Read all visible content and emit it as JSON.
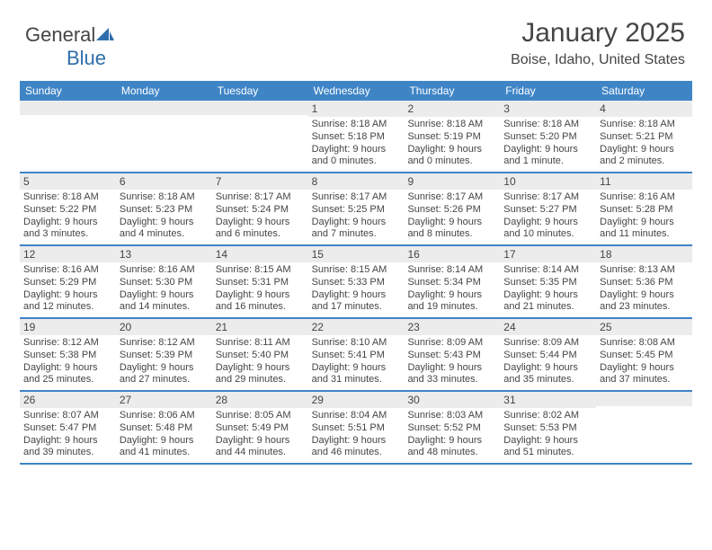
{
  "brand": {
    "part1": "General",
    "part2": "Blue"
  },
  "colors": {
    "header_bg": "#3f85c6",
    "header_text": "#ffffff",
    "daynum_bg": "#ececec",
    "text": "#454545",
    "divider": "#3f85c6",
    "logo_blue": "#2f6eab",
    "background": "#ffffff"
  },
  "fonts": {
    "base_family": "Arial, Helvetica, sans-serif",
    "title_size_pt": 22,
    "location_size_pt": 12,
    "day_body_size_pt": 8
  },
  "title": "January 2025",
  "location": "Boise, Idaho, United States",
  "day_names": [
    "Sunday",
    "Monday",
    "Tuesday",
    "Wednesday",
    "Thursday",
    "Friday",
    "Saturday"
  ],
  "weeks": [
    [
      {
        "n": "",
        "lines": []
      },
      {
        "n": "",
        "lines": []
      },
      {
        "n": "",
        "lines": []
      },
      {
        "n": "1",
        "lines": [
          "Sunrise: 8:18 AM",
          "Sunset: 5:18 PM",
          "Daylight: 9 hours",
          "and 0 minutes."
        ]
      },
      {
        "n": "2",
        "lines": [
          "Sunrise: 8:18 AM",
          "Sunset: 5:19 PM",
          "Daylight: 9 hours",
          "and 0 minutes."
        ]
      },
      {
        "n": "3",
        "lines": [
          "Sunrise: 8:18 AM",
          "Sunset: 5:20 PM",
          "Daylight: 9 hours",
          "and 1 minute."
        ]
      },
      {
        "n": "4",
        "lines": [
          "Sunrise: 8:18 AM",
          "Sunset: 5:21 PM",
          "Daylight: 9 hours",
          "and 2 minutes."
        ]
      }
    ],
    [
      {
        "n": "5",
        "lines": [
          "Sunrise: 8:18 AM",
          "Sunset: 5:22 PM",
          "Daylight: 9 hours",
          "and 3 minutes."
        ]
      },
      {
        "n": "6",
        "lines": [
          "Sunrise: 8:18 AM",
          "Sunset: 5:23 PM",
          "Daylight: 9 hours",
          "and 4 minutes."
        ]
      },
      {
        "n": "7",
        "lines": [
          "Sunrise: 8:17 AM",
          "Sunset: 5:24 PM",
          "Daylight: 9 hours",
          "and 6 minutes."
        ]
      },
      {
        "n": "8",
        "lines": [
          "Sunrise: 8:17 AM",
          "Sunset: 5:25 PM",
          "Daylight: 9 hours",
          "and 7 minutes."
        ]
      },
      {
        "n": "9",
        "lines": [
          "Sunrise: 8:17 AM",
          "Sunset: 5:26 PM",
          "Daylight: 9 hours",
          "and 8 minutes."
        ]
      },
      {
        "n": "10",
        "lines": [
          "Sunrise: 8:17 AM",
          "Sunset: 5:27 PM",
          "Daylight: 9 hours",
          "and 10 minutes."
        ]
      },
      {
        "n": "11",
        "lines": [
          "Sunrise: 8:16 AM",
          "Sunset: 5:28 PM",
          "Daylight: 9 hours",
          "and 11 minutes."
        ]
      }
    ],
    [
      {
        "n": "12",
        "lines": [
          "Sunrise: 8:16 AM",
          "Sunset: 5:29 PM",
          "Daylight: 9 hours",
          "and 12 minutes."
        ]
      },
      {
        "n": "13",
        "lines": [
          "Sunrise: 8:16 AM",
          "Sunset: 5:30 PM",
          "Daylight: 9 hours",
          "and 14 minutes."
        ]
      },
      {
        "n": "14",
        "lines": [
          "Sunrise: 8:15 AM",
          "Sunset: 5:31 PM",
          "Daylight: 9 hours",
          "and 16 minutes."
        ]
      },
      {
        "n": "15",
        "lines": [
          "Sunrise: 8:15 AM",
          "Sunset: 5:33 PM",
          "Daylight: 9 hours",
          "and 17 minutes."
        ]
      },
      {
        "n": "16",
        "lines": [
          "Sunrise: 8:14 AM",
          "Sunset: 5:34 PM",
          "Daylight: 9 hours",
          "and 19 minutes."
        ]
      },
      {
        "n": "17",
        "lines": [
          "Sunrise: 8:14 AM",
          "Sunset: 5:35 PM",
          "Daylight: 9 hours",
          "and 21 minutes."
        ]
      },
      {
        "n": "18",
        "lines": [
          "Sunrise: 8:13 AM",
          "Sunset: 5:36 PM",
          "Daylight: 9 hours",
          "and 23 minutes."
        ]
      }
    ],
    [
      {
        "n": "19",
        "lines": [
          "Sunrise: 8:12 AM",
          "Sunset: 5:38 PM",
          "Daylight: 9 hours",
          "and 25 minutes."
        ]
      },
      {
        "n": "20",
        "lines": [
          "Sunrise: 8:12 AM",
          "Sunset: 5:39 PM",
          "Daylight: 9 hours",
          "and 27 minutes."
        ]
      },
      {
        "n": "21",
        "lines": [
          "Sunrise: 8:11 AM",
          "Sunset: 5:40 PM",
          "Daylight: 9 hours",
          "and 29 minutes."
        ]
      },
      {
        "n": "22",
        "lines": [
          "Sunrise: 8:10 AM",
          "Sunset: 5:41 PM",
          "Daylight: 9 hours",
          "and 31 minutes."
        ]
      },
      {
        "n": "23",
        "lines": [
          "Sunrise: 8:09 AM",
          "Sunset: 5:43 PM",
          "Daylight: 9 hours",
          "and 33 minutes."
        ]
      },
      {
        "n": "24",
        "lines": [
          "Sunrise: 8:09 AM",
          "Sunset: 5:44 PM",
          "Daylight: 9 hours",
          "and 35 minutes."
        ]
      },
      {
        "n": "25",
        "lines": [
          "Sunrise: 8:08 AM",
          "Sunset: 5:45 PM",
          "Daylight: 9 hours",
          "and 37 minutes."
        ]
      }
    ],
    [
      {
        "n": "26",
        "lines": [
          "Sunrise: 8:07 AM",
          "Sunset: 5:47 PM",
          "Daylight: 9 hours",
          "and 39 minutes."
        ]
      },
      {
        "n": "27",
        "lines": [
          "Sunrise: 8:06 AM",
          "Sunset: 5:48 PM",
          "Daylight: 9 hours",
          "and 41 minutes."
        ]
      },
      {
        "n": "28",
        "lines": [
          "Sunrise: 8:05 AM",
          "Sunset: 5:49 PM",
          "Daylight: 9 hours",
          "and 44 minutes."
        ]
      },
      {
        "n": "29",
        "lines": [
          "Sunrise: 8:04 AM",
          "Sunset: 5:51 PM",
          "Daylight: 9 hours",
          "and 46 minutes."
        ]
      },
      {
        "n": "30",
        "lines": [
          "Sunrise: 8:03 AM",
          "Sunset: 5:52 PM",
          "Daylight: 9 hours",
          "and 48 minutes."
        ]
      },
      {
        "n": "31",
        "lines": [
          "Sunrise: 8:02 AM",
          "Sunset: 5:53 PM",
          "Daylight: 9 hours",
          "and 51 minutes."
        ]
      },
      {
        "n": "",
        "lines": []
      }
    ]
  ]
}
